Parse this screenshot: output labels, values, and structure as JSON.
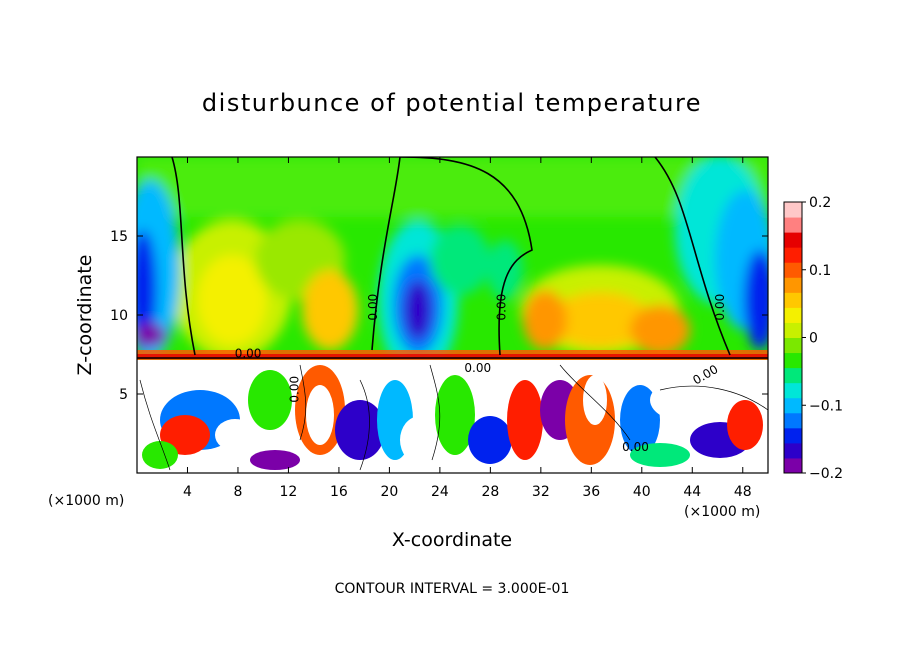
{
  "chart_data": {
    "type": "heatmap",
    "title": "disturbunce of potential temperature",
    "xlabel": "X-coordinate",
    "ylabel": "Z-coordinate",
    "x_unit_left": "(×1000 m)",
    "x_unit_right": "(×1000 m)",
    "xlim": [
      0,
      50
    ],
    "ylim": [
      0,
      20
    ],
    "x_ticks": [
      4,
      8,
      12,
      16,
      20,
      24,
      28,
      32,
      36,
      40,
      44,
      48
    ],
    "y_ticks": [
      5,
      10,
      15
    ],
    "colorbar": {
      "range": [
        -0.2,
        0.2
      ],
      "tick_values": [
        0.2,
        0.1,
        0,
        -0.1,
        -0.2
      ],
      "tick_labels": [
        "0.2",
        "0.1",
        "0",
        "−0.1",
        "−0.2"
      ],
      "colors": [
        "#7b00a8",
        "#2d00c9",
        "#0022ee",
        "#0078ff",
        "#00b9ff",
        "#00e6d8",
        "#00e87a",
        "#28e800",
        "#7be800",
        "#c8f000",
        "#f4f000",
        "#ffc800",
        "#ff9600",
        "#ff5a00",
        "#ff1e00",
        "#e60000",
        "#ff8080",
        "#ffc8c8"
      ]
    },
    "contour_labels": [
      {
        "text": "0.00",
        "x": 19.0,
        "z": 10.5,
        "rotate": -90
      },
      {
        "text": "0.00",
        "x": 29.2,
        "z": 10.5,
        "rotate": -90
      },
      {
        "text": "0.00",
        "x": 46.5,
        "z": 10.5,
        "rotate": -90
      },
      {
        "text": "0.00",
        "x": 8.8,
        "z": 7.3,
        "rotate": 0
      },
      {
        "text": "0.00",
        "x": 12.8,
        "z": 5.3,
        "rotate": -90
      },
      {
        "text": "0.00",
        "x": 27.0,
        "z": 6.4,
        "rotate": 0
      },
      {
        "text": "0.00",
        "x": 39.5,
        "z": 1.4,
        "rotate": 0
      },
      {
        "text": "0.00",
        "x": 45.2,
        "z": 6.0,
        "rotate": -30
      }
    ],
    "footer": "CONTOUR INTERVAL = 3.000E-01"
  }
}
